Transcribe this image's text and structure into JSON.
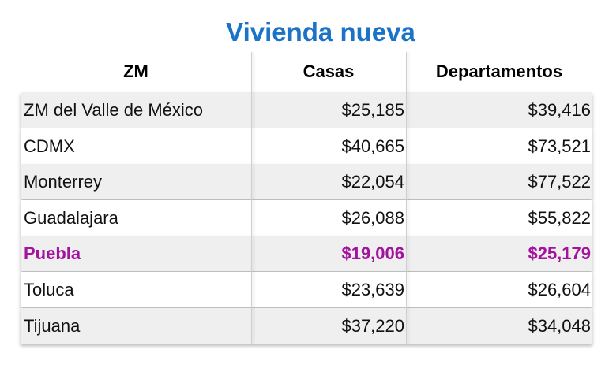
{
  "title": "Vivienda nueva",
  "table": {
    "header": [
      "ZM",
      "Casas",
      "Departamentos"
    ],
    "rows": [
      [
        "ZM del Valle de México",
        "$25,185",
        "$39,416"
      ],
      [
        "CDMX",
        "$40,665",
        "$73,521"
      ],
      [
        "Monterrey",
        "$22,054",
        "$77,522"
      ],
      [
        "Guadalajara",
        "$26,088",
        "$55,822"
      ],
      [
        "Puebla",
        "$19,006",
        "$25,179"
      ],
      [
        "Toluca",
        "$23,639",
        "$26,604"
      ],
      [
        "Tijuana",
        "$37,220",
        "$34,048"
      ]
    ],
    "highlight": {
      "row": 4,
      "color": "#a3139f"
    }
  }
}
